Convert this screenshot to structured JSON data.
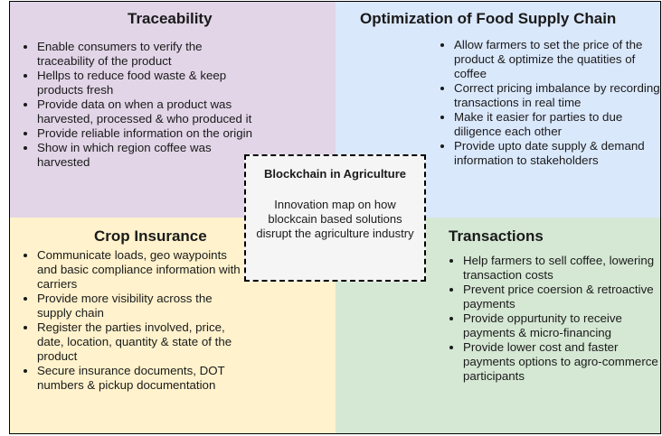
{
  "colors": {
    "traceability_bg": "#e1d5e7",
    "optimization_bg": "#dae8fc",
    "crop_insurance_bg": "#fff2cc",
    "transactions_bg": "#d5e8d4",
    "center_bg": "#f5f5f5",
    "border": "#000000"
  },
  "traceability": {
    "title": "Traceability",
    "items": [
      "Enable consumers to verify the traceability of the product",
      "Hellps to reduce food waste & keep products fresh",
      "Provide data on when a product was harvested, processed & who produced it",
      "Provide reliable information on the origin",
      "Show in which region coffee was harvested"
    ]
  },
  "optimization": {
    "title": "Optimization of Food Supply Chain",
    "items": [
      "Allow farmers to set the price of the product & optimize the quatities of coffee",
      "Correct pricing imbalance by recording transactions in real time",
      "Make it easier for parties to due diligence each other",
      "Provide upto date supply & demand information to stakeholders"
    ]
  },
  "crop_insurance": {
    "title": "Crop Insurance",
    "items": [
      "Communicate loads, geo waypoints  and basic compliance information with carriers",
      "Provide more visibility across the supply chain",
      "Register the parties involved, price, date, location, quantity & state of the product",
      "Secure insurance documents, DOT numbers & pickup documentation"
    ]
  },
  "transactions": {
    "title": "Transactions",
    "items": [
      "Help farmers to sell coffee, lowering transaction costs",
      "Prevent price coersion & retroactive payments",
      "Provide oppurtunity to receive payments & micro-financing",
      "Provide lower cost and faster payments options to agro-commerce participants"
    ]
  },
  "center": {
    "title": "Blockchain in Agriculture",
    "description": "Innovation map on how blockcain based solutions disrupt the agriculture industry"
  }
}
